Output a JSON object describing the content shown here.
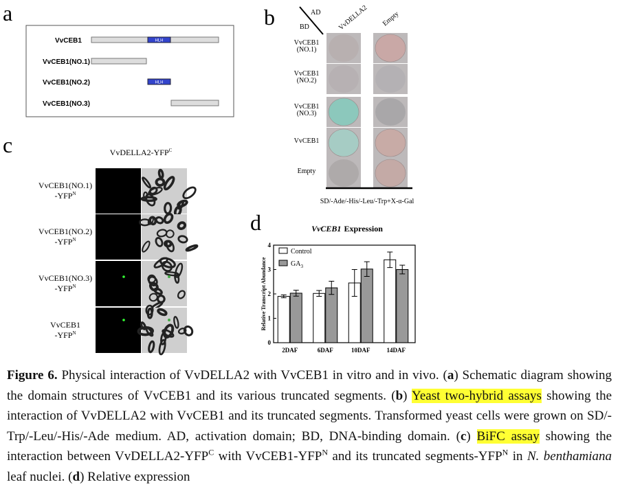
{
  "panel_labels": [
    "a",
    "b",
    "c",
    "d"
  ],
  "panel_a": {
    "rows": [
      {
        "label": "VvCEB1",
        "domain": "HLH"
      },
      {
        "label": "VvCEB1(NO.1)"
      },
      {
        "label": "VvCEB1(NO.2)",
        "domain": "HLH"
      },
      {
        "label": "VvCEB1(NO.3)"
      }
    ]
  },
  "panel_b": {
    "ad": "AD",
    "bd": "BD",
    "columns": [
      "VvDELLA2",
      "Empty"
    ],
    "rows": [
      [
        "VvCEB1",
        "(NO.1)"
      ],
      [
        "VvCEB1",
        "(NO.2)"
      ],
      [
        "VvCEB1",
        "(NO.3)"
      ],
      [
        "VvCEB1"
      ],
      [
        "Empty"
      ]
    ],
    "medium": "SD/-Ade/-His/-Leu/-Trp+X-α-Gal"
  },
  "panel_c": {
    "title": "VvDELLA2-YFP",
    "title_sup": "C",
    "rows": [
      {
        "line1": "VvCEB1(NO.1)",
        "line2": "-YFP",
        "sup": "N"
      },
      {
        "line1": "VvCEB1(NO.2)",
        "line2": "-YFP",
        "sup": "N"
      },
      {
        "line1": "VvCEB1(NO.3)",
        "line2": "-YFP",
        "sup": "N"
      },
      {
        "line1": "VvCEB1",
        "line2": "-YFP",
        "sup": "N"
      }
    ]
  },
  "chart_data": {
    "type": "bar",
    "title_italic": "VvCEB1",
    "title": "Expression",
    "y_label": "Relative Transcript Abundance",
    "categories": [
      "2DAF",
      "6DAF",
      "10DAF",
      "14DAF"
    ],
    "series": [
      {
        "name": "Control",
        "color": "#ffffff",
        "values": [
          1.9,
          2.02,
          2.45,
          3.4
        ],
        "errors": [
          0.06,
          0.12,
          0.55,
          0.32
        ]
      },
      {
        "name": "GA",
        "name_sub": "3",
        "color": "#999999",
        "values": [
          2.03,
          2.25,
          3.02,
          3.0
        ],
        "errors": [
          0.12,
          0.27,
          0.3,
          0.18
        ]
      }
    ],
    "ylim": [
      0,
      4
    ],
    "yticks": [
      0,
      1,
      2,
      3,
      4
    ],
    "legend": "upper left"
  },
  "caption": {
    "parts": [
      {
        "text": "Figure 6.",
        "style": "bold"
      },
      {
        "text": " Physical interaction of VvDELLA2 with VvCEB1 in vitro and in vivo. ("
      },
      {
        "text": "a",
        "style": "bold"
      },
      {
        "text": ") Schematic diagram showing the domain structures of VvCEB1 and its various truncated segments. ("
      },
      {
        "text": "b",
        "style": "bold"
      },
      {
        "text": ") "
      },
      {
        "text": "Yeast two-hybrid assays",
        "style": "highlight"
      },
      {
        "text": " showing the interaction of VvDELLA2 with VvCEB1 and its truncated segments. Transformed yeast cells were grown on SD/-Trp/-Leu/-His/-Ade medium. AD, activation domain; BD, DNA-binding domain. ("
      },
      {
        "text": "c",
        "style": "bold"
      },
      {
        "text": ") "
      },
      {
        "text": "BiFC assay",
        "style": "highlight"
      },
      {
        "text": " showing the interaction between VvDELLA2-YFP"
      },
      {
        "text": "C",
        "style": "sup"
      },
      {
        "text": " with VvCEB1-YFP"
      },
      {
        "text": "N",
        "style": "sup"
      },
      {
        "text": " and its truncated segments-YFP"
      },
      {
        "text": "N",
        "style": "sup"
      },
      {
        "text": " in "
      },
      {
        "text": "N. benthamiana",
        "style": "italic"
      },
      {
        "text": " leaf nuclei. ("
      },
      {
        "text": "d",
        "style": "bold"
      },
      {
        "text": ") Relative expression"
      }
    ]
  }
}
